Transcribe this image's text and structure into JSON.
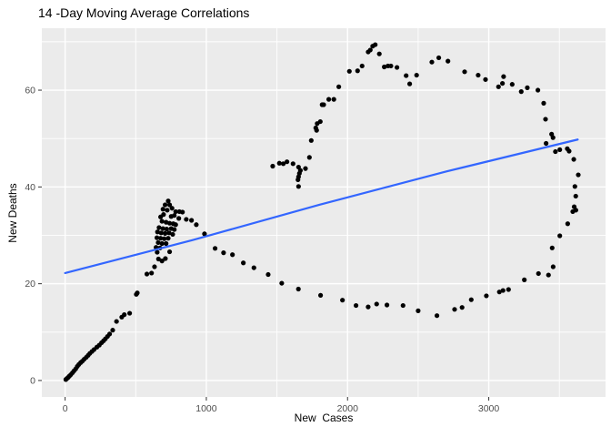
{
  "window": {
    "title": "14 -Day Moving Average Correlations"
  },
  "chart_data": {
    "type": "scatter",
    "title": "14 -Day Moving Average Correlations",
    "xlabel": "New  Cases",
    "ylabel": "New Deaths",
    "x_ticks": [
      0,
      1000,
      2000,
      3000
    ],
    "x_minor_ticks": [
      500,
      1500,
      2500,
      3500
    ],
    "y_ticks": [
      0,
      20,
      40,
      60
    ],
    "y_minor_ticks": [
      10,
      30,
      50,
      70
    ],
    "xlim": [
      -165,
      3827
    ],
    "ylim": [
      -3.4,
      72.8
    ],
    "grid": true,
    "legend": "none",
    "panel_bg": "#EBEBEB",
    "grid_color": "#FFFFFF",
    "point_color": "#000000",
    "tick_color": "#333333",
    "tick_label_color": "#4D4D4D",
    "trend": {
      "type": "smooth-line",
      "color": "#3366FF",
      "x": [
        0,
        900,
        1800,
        2700,
        3630
      ],
      "y": [
        22.2,
        29.0,
        36.3,
        43.2,
        49.8
      ]
    },
    "points": [
      [
        5,
        0.2
      ],
      [
        12,
        0.4
      ],
      [
        20,
        0.6
      ],
      [
        30,
        0.9
      ],
      [
        40,
        1.2
      ],
      [
        52,
        1.6
      ],
      [
        63,
        2.0
      ],
      [
        75,
        2.4
      ],
      [
        86,
        2.9
      ],
      [
        97,
        3.3
      ],
      [
        110,
        3.7
      ],
      [
        122,
        4.0
      ],
      [
        135,
        4.4
      ],
      [
        150,
        4.8
      ],
      [
        163,
        5.2
      ],
      [
        175,
        5.6
      ],
      [
        190,
        6.0
      ],
      [
        205,
        6.4
      ],
      [
        225,
        6.9
      ],
      [
        242,
        7.3
      ],
      [
        258,
        7.8
      ],
      [
        272,
        8.2
      ],
      [
        285,
        8.6
      ],
      [
        300,
        9.1
      ],
      [
        315,
        9.6
      ],
      [
        337,
        10.4
      ],
      [
        364,
        12.2
      ],
      [
        401,
        13.1
      ],
      [
        419,
        13.6
      ],
      [
        457,
        13.9
      ],
      [
        504,
        17.8
      ],
      [
        511,
        18.1
      ],
      [
        579,
        22.0
      ],
      [
        612,
        22.2
      ],
      [
        633,
        23.5
      ],
      [
        652,
        26.5
      ],
      [
        661,
        25.1
      ],
      [
        686,
        24.7
      ],
      [
        710,
        25.2
      ],
      [
        730,
        37.1
      ],
      [
        708,
        36.3
      ],
      [
        740,
        36.3
      ],
      [
        693,
        35.4
      ],
      [
        723,
        35.2
      ],
      [
        757,
        35.6
      ],
      [
        783,
        34.9
      ],
      [
        809,
        34.9
      ],
      [
        831,
        34.8
      ],
      [
        773,
        34.1
      ],
      [
        751,
        33.9
      ],
      [
        697,
        34.3
      ],
      [
        676,
        33.8
      ],
      [
        805,
        33.5
      ],
      [
        858,
        33.3
      ],
      [
        895,
        33.1
      ],
      [
        686,
        32.9
      ],
      [
        715,
        32.7
      ],
      [
        740,
        32.5
      ],
      [
        766,
        32.4
      ],
      [
        783,
        32.2
      ],
      [
        665,
        31.6
      ],
      [
        693,
        31.4
      ],
      [
        719,
        31.3
      ],
      [
        751,
        31.4
      ],
      [
        773,
        31.2
      ],
      [
        654,
        30.7
      ],
      [
        680,
        30.5
      ],
      [
        708,
        30.4
      ],
      [
        736,
        30.5
      ],
      [
        762,
        30.2
      ],
      [
        650,
        29.5
      ],
      [
        676,
        29.4
      ],
      [
        702,
        29.3
      ],
      [
        730,
        29.4
      ],
      [
        659,
        28.5
      ],
      [
        686,
        28.3
      ],
      [
        715,
        28.3
      ],
      [
        644,
        27.5
      ],
      [
        672,
        27.4
      ],
      [
        740,
        26.6
      ],
      [
        929,
        32.2
      ],
      [
        987,
        30.3
      ],
      [
        1062,
        27.3
      ],
      [
        1122,
        26.4
      ],
      [
        1185,
        26.0
      ],
      [
        1262,
        24.3
      ],
      [
        1337,
        23.3
      ],
      [
        1438,
        21.9
      ],
      [
        1534,
        20.1
      ],
      [
        1652,
        18.9
      ],
      [
        1809,
        17.6
      ],
      [
        1964,
        16.6
      ],
      [
        2060,
        15.5
      ],
      [
        2146,
        15.2
      ],
      [
        2206,
        15.8
      ],
      [
        2279,
        15.6
      ],
      [
        2393,
        15.5
      ],
      [
        2500,
        14.4
      ],
      [
        2633,
        13.4
      ],
      [
        2758,
        14.7
      ],
      [
        2811,
        15.1
      ],
      [
        2876,
        16.7
      ],
      [
        2983,
        17.5
      ],
      [
        3075,
        18.3
      ],
      [
        3101,
        18.6
      ],
      [
        3140,
        18.8
      ],
      [
        3252,
        20.8
      ],
      [
        3352,
        22.1
      ],
      [
        3423,
        21.8
      ],
      [
        3456,
        23.5
      ],
      [
        3449,
        27.4
      ],
      [
        3503,
        29.9
      ],
      [
        3559,
        32.4
      ],
      [
        3595,
        34.9
      ],
      [
        3617,
        35.2
      ],
      [
        3605,
        35.9
      ],
      [
        3616,
        38.1
      ],
      [
        3610,
        40.1
      ],
      [
        3634,
        42.5
      ],
      [
        3602,
        45.7
      ],
      [
        3569,
        47.4
      ],
      [
        3556,
        47.9
      ],
      [
        3503,
        47.7
      ],
      [
        3472,
        47.3
      ],
      [
        3455,
        50.2
      ],
      [
        3445,
        50.9
      ],
      [
        3406,
        49.0
      ],
      [
        3402,
        54.0
      ],
      [
        3389,
        57.3
      ],
      [
        3348,
        60.0
      ],
      [
        3273,
        60.5
      ],
      [
        3230,
        59.7
      ],
      [
        3166,
        61.2
      ],
      [
        3105,
        62.8
      ],
      [
        3097,
        61.4
      ],
      [
        3069,
        60.7
      ],
      [
        2977,
        62.2
      ],
      [
        2925,
        63.1
      ],
      [
        2829,
        63.8
      ],
      [
        2711,
        66.0
      ],
      [
        2646,
        66.7
      ],
      [
        2597,
        65.8
      ],
      [
        2489,
        63.1
      ],
      [
        2440,
        61.3
      ],
      [
        2415,
        63.0
      ],
      [
        2350,
        64.7
      ],
      [
        2307,
        65.0
      ],
      [
        2286,
        65.0
      ],
      [
        2260,
        64.8
      ],
      [
        2225,
        67.5
      ],
      [
        2196,
        69.4
      ],
      [
        2178,
        69.1
      ],
      [
        2161,
        68.3
      ],
      [
        2146,
        67.9
      ],
      [
        2103,
        65.0
      ],
      [
        2071,
        64.0
      ],
      [
        2013,
        63.9
      ],
      [
        1938,
        60.7
      ],
      [
        1903,
        58.1
      ],
      [
        1867,
        58.1
      ],
      [
        1831,
        57.0
      ],
      [
        1820,
        57.0
      ],
      [
        1807,
        53.5
      ],
      [
        1785,
        53.1
      ],
      [
        1781,
        51.7
      ],
      [
        1775,
        52.2
      ],
      [
        1743,
        49.6
      ],
      [
        1730,
        46.1
      ],
      [
        1470,
        44.3
      ],
      [
        1517,
        44.9
      ],
      [
        1545,
        44.8
      ],
      [
        1571,
        45.2
      ],
      [
        1614,
        44.8
      ],
      [
        1653,
        44.1
      ],
      [
        1666,
        43.4
      ],
      [
        1659,
        42.8
      ],
      [
        1653,
        42.1
      ],
      [
        1649,
        41.5
      ],
      [
        1702,
        43.8
      ],
      [
        1653,
        40.1
      ]
    ]
  }
}
